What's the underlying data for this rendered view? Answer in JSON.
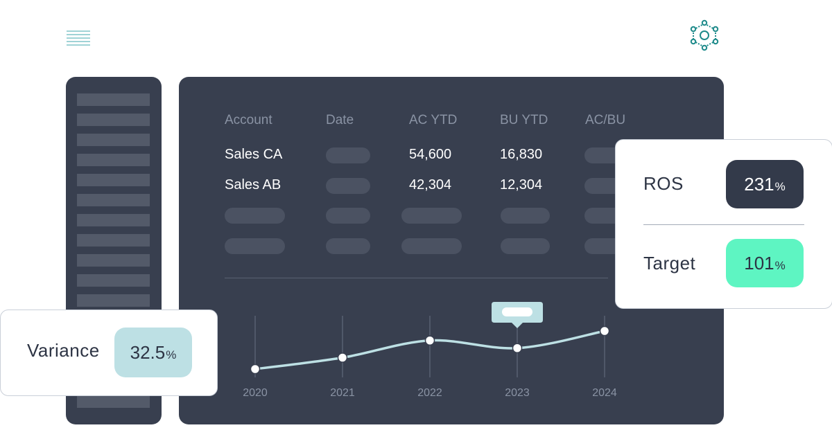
{
  "header": {
    "menu_icon": "hamburger-menu-icon",
    "logo_icon": "network-hub-icon",
    "accent_color": "#1d8a8a"
  },
  "table": {
    "columns": [
      "Account",
      "Date",
      "AC YTD",
      "BU YTD",
      "AC/BU"
    ],
    "rows": [
      {
        "account": "Sales CA",
        "ac_ytd": "54,600",
        "bu_ytd": "16,830"
      },
      {
        "account": "Sales AB",
        "ac_ytd": "42,304",
        "bu_ytd": "12,304"
      }
    ]
  },
  "chart_data": {
    "type": "line",
    "x": [
      "2020",
      "2021",
      "2022",
      "2023",
      "2024"
    ],
    "series": [
      {
        "values": [
          0.0,
          0.3,
          0.75,
          0.55,
          1.0
        ]
      }
    ],
    "grid": "vertical",
    "highlight": "2023"
  },
  "metrics": {
    "ros": {
      "label": "ROS",
      "value": "231",
      "unit": "%"
    },
    "target": {
      "label": "Target",
      "value": "101",
      "unit": "%"
    },
    "variance": {
      "label": "Variance",
      "value": "32.5",
      "unit": "%"
    }
  },
  "colors": {
    "panel": "#383f4f",
    "ros_badge": "#333a4a",
    "target_badge": "#5ef5c2",
    "variance_badge": "#bde0e4",
    "line": "#bde0e4"
  }
}
